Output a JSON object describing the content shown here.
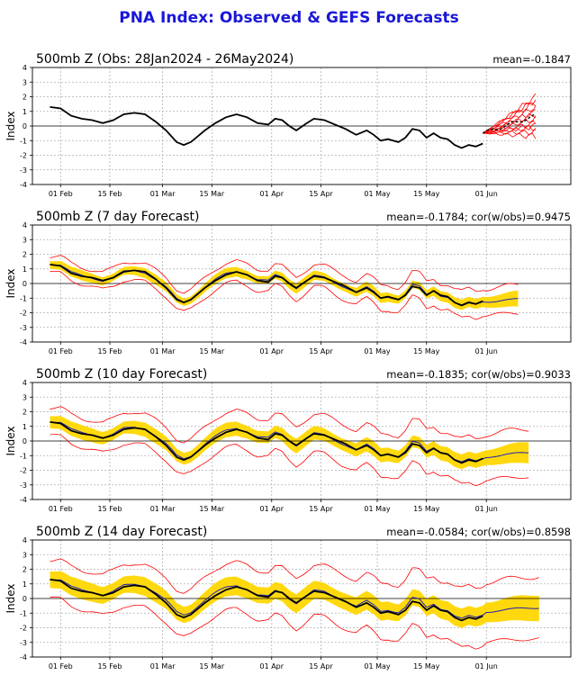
{
  "title": "PNA Index: Observed & GEFS Forecasts",
  "colors": {
    "title": "#1a17d8",
    "observed": "#000000",
    "ensemble_mean": "#1f1fb4",
    "spread_band": "#ffd700",
    "ensemble_range": "#ff0000",
    "zero_line": "#000000",
    "grid": "#b0b0b0"
  },
  "chart_data": [
    {
      "type": "line",
      "panel_title": "500mb Z (Obs: 28Jan2024 - 26May2024)",
      "stat_text": "mean=-0.1847",
      "ylabel": "Index",
      "ylim": [
        -4,
        4
      ],
      "yticks": [
        -4,
        -3,
        -2,
        -1,
        0,
        1,
        2,
        3,
        4
      ],
      "xticks": [
        "01 Feb",
        "15 Feb",
        "01 Mar",
        "15 Mar",
        "01 Apr",
        "15 Apr",
        "01 May",
        "15 May",
        "01 Jun"
      ],
      "grid": true,
      "series": [
        {
          "role": "observed",
          "values": [
            [
              -3,
              1.3
            ],
            [
              0,
              1.2
            ],
            [
              3,
              0.7
            ],
            [
              6,
              0.5
            ],
            [
              9,
              0.4
            ],
            [
              12,
              0.2
            ],
            [
              15,
              0.4
            ],
            [
              18,
              0.8
            ],
            [
              21,
              0.9
            ],
            [
              24,
              0.8
            ],
            [
              27,
              0.3
            ],
            [
              30,
              -0.3
            ],
            [
              33,
              -1.1
            ],
            [
              35,
              -1.3
            ],
            [
              37,
              -1.1
            ],
            [
              39,
              -0.7
            ],
            [
              41,
              -0.3
            ],
            [
              44,
              0.2
            ],
            [
              47,
              0.6
            ],
            [
              50,
              0.8
            ],
            [
              53,
              0.6
            ],
            [
              56,
              0.2
            ],
            [
              59,
              0.1
            ],
            [
              61,
              0.5
            ],
            [
              63,
              0.4
            ],
            [
              65,
              0.0
            ],
            [
              67,
              -0.3
            ],
            [
              70,
              0.2
            ],
            [
              72,
              0.5
            ],
            [
              75,
              0.4
            ],
            [
              78,
              0.1
            ],
            [
              81,
              -0.2
            ],
            [
              84,
              -0.6
            ],
            [
              87,
              -0.3
            ],
            [
              89,
              -0.6
            ],
            [
              91,
              -1.0
            ],
            [
              93,
              -0.9
            ],
            [
              96,
              -1.1
            ],
            [
              98,
              -0.8
            ],
            [
              100,
              -0.2
            ],
            [
              102,
              -0.3
            ],
            [
              104,
              -0.8
            ],
            [
              106,
              -0.5
            ],
            [
              108,
              -0.8
            ],
            [
              110,
              -0.9
            ],
            [
              112,
              -1.3
            ],
            [
              114,
              -1.5
            ],
            [
              116,
              -1.3
            ],
            [
              118,
              -1.4
            ],
            [
              120,
              -1.2
            ]
          ]
        },
        {
          "role": "forecast_members",
          "note_start": [
            120,
            -0.5
          ],
          "members_end": [
            2.0,
            1.6,
            1.3,
            1.0,
            0.8,
            0.5,
            0.2,
            -0.1,
            -0.4,
            -0.7,
            1.8,
            0.0
          ]
        }
      ],
      "forecast_start_day": 120,
      "forecast_end_day": 135
    },
    {
      "type": "area",
      "panel_title": "500mb Z (7 day Forecast)",
      "stat_text": "mean=-0.1784; cor(w/obs)=0.9475",
      "ylabel": "Index",
      "ylim": [
        -4,
        4
      ],
      "yticks": [
        -4,
        -3,
        -2,
        -1,
        0,
        1,
        2,
        3,
        4
      ],
      "xticks": [
        "01 Feb",
        "15 Feb",
        "01 Mar",
        "15 Mar",
        "01 Apr",
        "15 Apr",
        "01 May",
        "15 May",
        "01 Jun"
      ],
      "grid": true,
      "band_halfwidth": 0.3,
      "range_halfwidth": 0.55,
      "range_growth": 0.0015,
      "mean_offset": [
        [
          -3,
          0.15
        ],
        [
          20,
          -0.05
        ],
        [
          40,
          0.1
        ],
        [
          60,
          0.15
        ],
        [
          80,
          -0.1
        ],
        [
          100,
          0.2
        ],
        [
          115,
          -0.1
        ],
        [
          130,
          0.1
        ]
      ],
      "end_day": 130
    },
    {
      "type": "area",
      "panel_title": "500mb Z (10 day Forecast)",
      "stat_text": "mean=-0.1835; cor(w/obs)=0.9033",
      "ylabel": "Index",
      "ylim": [
        -4,
        4
      ],
      "yticks": [
        -4,
        -3,
        -2,
        -1,
        0,
        1,
        2,
        3,
        4
      ],
      "xticks": [
        "01 Feb",
        "15 Feb",
        "01 Mar",
        "15 Mar",
        "01 Apr",
        "15 Apr",
        "01 May",
        "15 May",
        "01 Jun"
      ],
      "grid": true,
      "band_halfwidth": 0.45,
      "range_halfwidth": 0.95,
      "range_growth": 0.0025,
      "mean_offset": [
        [
          -3,
          0.2
        ],
        [
          20,
          0.1
        ],
        [
          40,
          0.3
        ],
        [
          60,
          0.2
        ],
        [
          80,
          -0.15
        ],
        [
          100,
          0.3
        ],
        [
          115,
          0.0
        ],
        [
          133,
          0.4
        ]
      ],
      "end_day": 133
    },
    {
      "type": "area",
      "panel_title": "500mb Z (14 day Forecast)",
      "stat_text": "mean=-0.0584; cor(w/obs)=0.8598",
      "ylabel": "Index",
      "ylim": [
        -4,
        4
      ],
      "yticks": [
        -4,
        -3,
        -2,
        -1,
        0,
        1,
        2,
        3,
        4
      ],
      "xticks": [
        "01 Feb",
        "15 Feb",
        "01 Mar",
        "15 Mar",
        "01 Apr",
        "15 Apr",
        "01 May",
        "15 May",
        "01 Jun"
      ],
      "grid": true,
      "band_halfwidth": 0.6,
      "range_halfwidth": 1.3,
      "range_growth": 0.003,
      "mean_offset": [
        [
          -3,
          0.2
        ],
        [
          20,
          0.2
        ],
        [
          40,
          0.6
        ],
        [
          60,
          0.0
        ],
        [
          80,
          0.1
        ],
        [
          100,
          0.6
        ],
        [
          115,
          0.2
        ],
        [
          136,
          0.6
        ]
      ],
      "end_day": 136
    }
  ]
}
